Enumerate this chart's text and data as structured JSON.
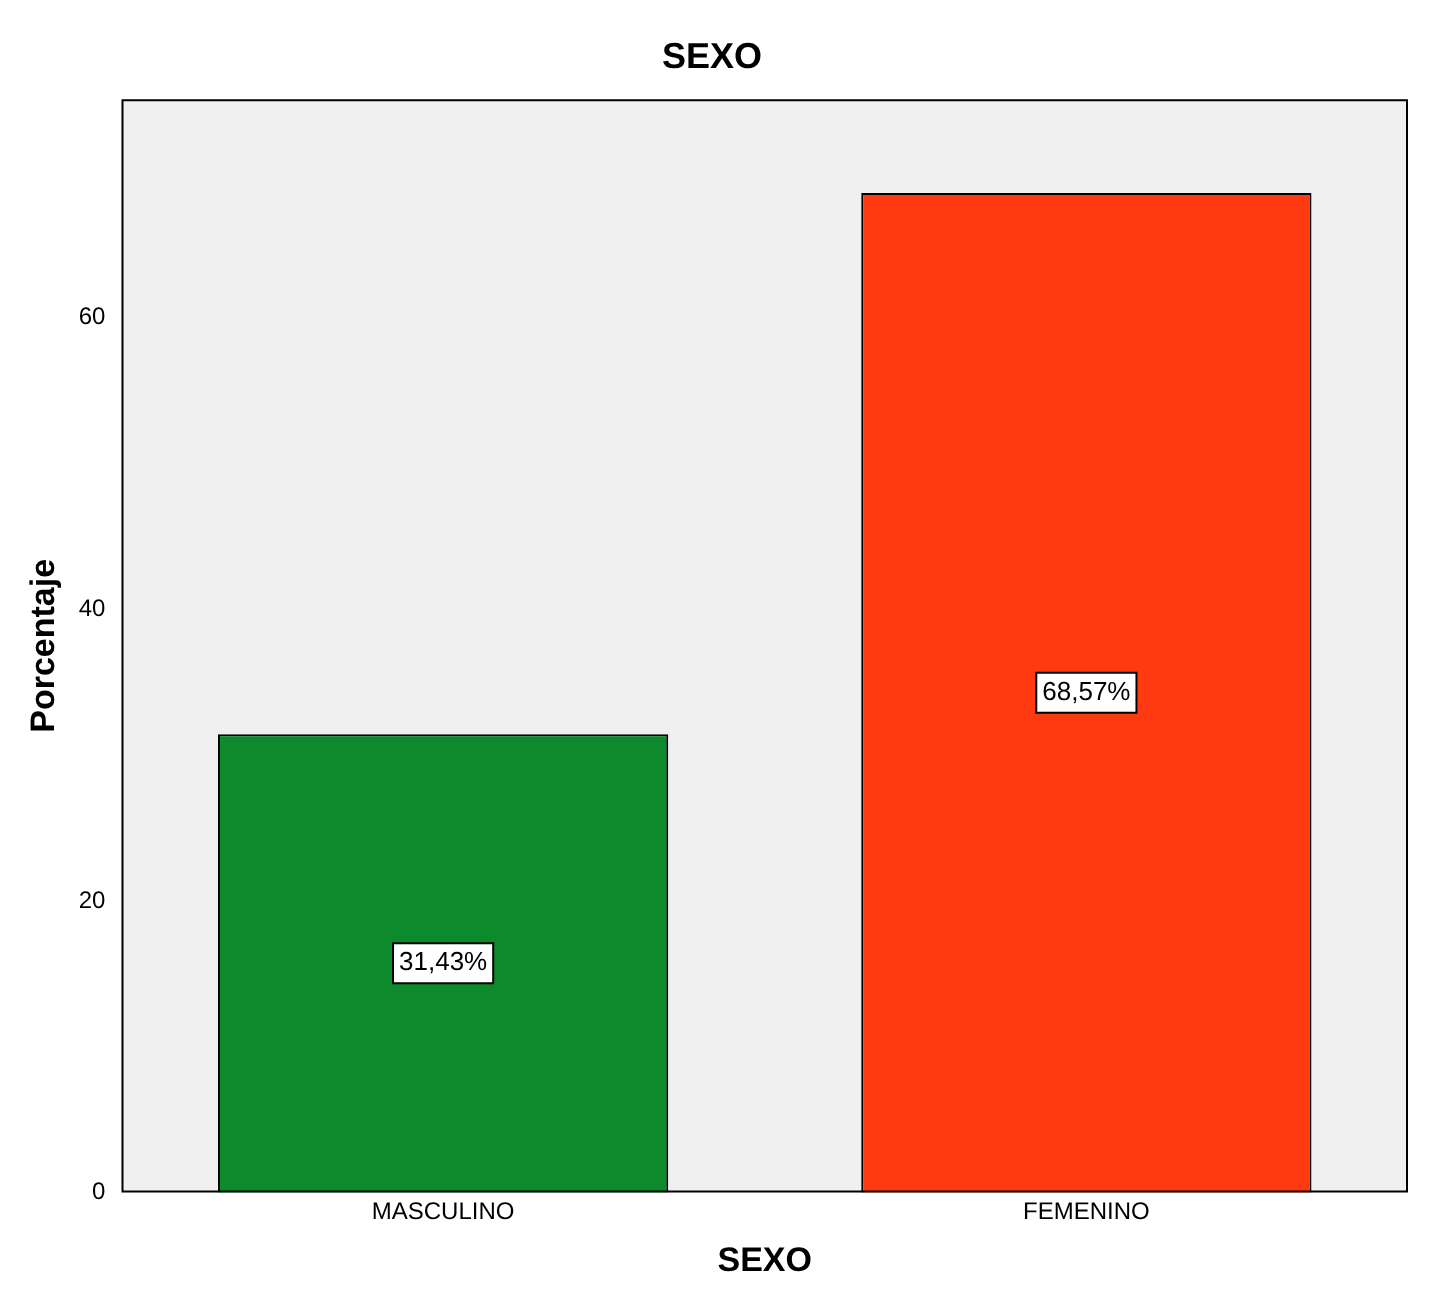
{
  "chart_data": {
    "type": "bar",
    "title": "SEXO",
    "xlabel": "SEXO",
    "ylabel": "Porcentaje",
    "categories": [
      "MASCULINO",
      "FEMENINO"
    ],
    "values": [
      31.43,
      68.57
    ],
    "colors": [
      "#0c8a2c",
      "#ff3a10"
    ],
    "value_labels": [
      "31,43%",
      "68,57%"
    ],
    "ylim": [
      0,
      75
    ],
    "yticks": [
      0,
      20,
      40,
      60
    ],
    "grid": false,
    "legend": false
  }
}
